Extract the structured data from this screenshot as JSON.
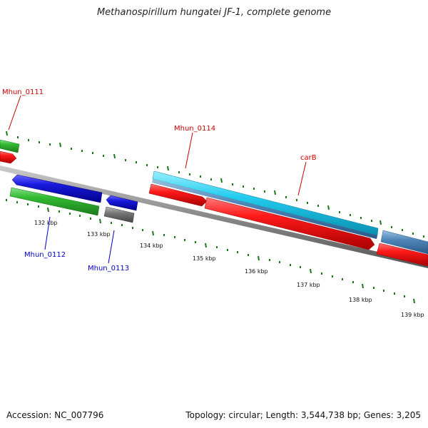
{
  "title": "Methanospirillum hungatei JF-1, complete genome",
  "footer": {
    "accession": "Accession: NC_007796",
    "summary": "Topology: circular; Length: 3,544,738 bp; Genes: 3,205"
  },
  "colors": {
    "strand_plus_label": "#cc0000",
    "strand_minus_label": "#0000cc",
    "tick": "#1a7a1a",
    "backbone": "#8a8a8a",
    "cds_red": "#ee1111",
    "gene_green": "#33bb33",
    "cds_blue": "#1a1adf",
    "pseudo_gray": "#777777",
    "cds_cyan": "#22ccee",
    "cds_steel": "#4f86b8"
  },
  "scale": {
    "unit": "kbp",
    "labels": [
      "132 kbp",
      "133 kbp",
      "134 kbp",
      "135 kbp",
      "136 kbp",
      "137 kbp",
      "138 kbp",
      "139 kbp"
    ]
  },
  "genes": {
    "upper_labels": [
      "Mhun_0111",
      "Mhun_0114",
      "carB"
    ],
    "lower_labels": [
      "Mhun_0112",
      "Mhun_0113"
    ]
  }
}
